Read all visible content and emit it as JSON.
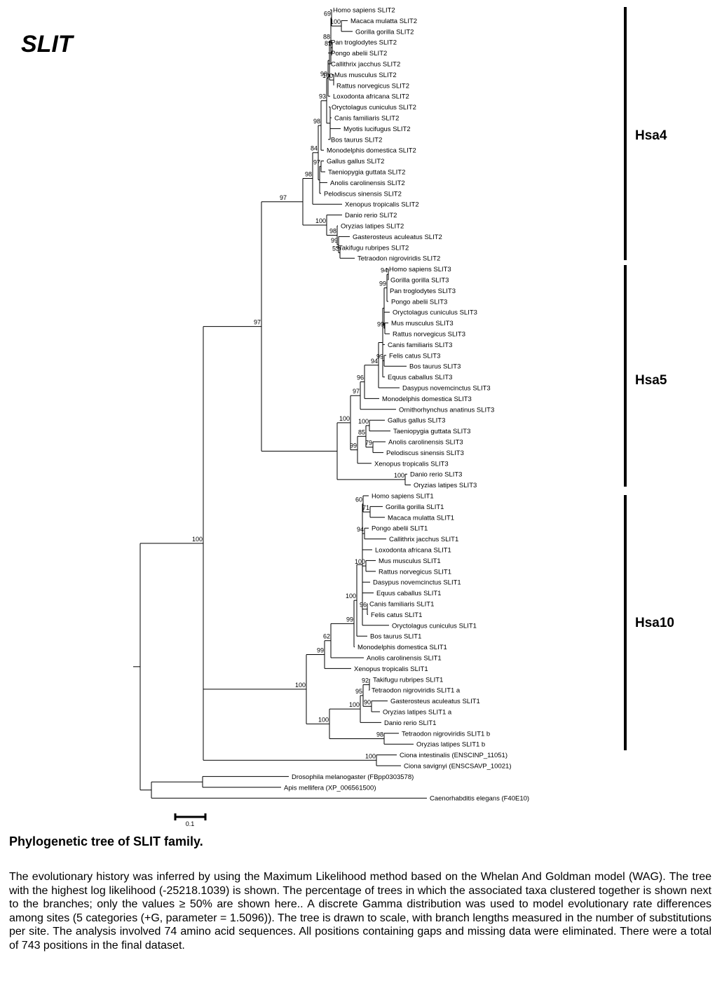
{
  "title": "SLIT",
  "tree": {
    "leaves": [
      "Homo sapiens SLIT2",
      "Macaca mulatta SLIT2",
      "Gorilla gorilla SLIT2",
      "Pan troglodytes SLIT2",
      "Pongo abelii SLIT2",
      "Callithrix jacchus SLIT2",
      "Mus musculus SLIT2",
      "Rattus norvegicus SLIT2",
      "Loxodonta africana SLIT2",
      "Oryctolagus cuniculus SLIT2",
      "Canis familiaris SLIT2",
      "Myotis lucifugus SLIT2",
      "Bos taurus SLIT2",
      "Monodelphis domestica SLIT2",
      "Gallus gallus SLIT2",
      "Taeniopygia guttata SLIT2",
      "Anolis carolinensis SLIT2",
      "Pelodiscus sinensis SLIT2",
      "Xenopus tropicalis SLIT2",
      "Danio rerio SLIT2",
      "Oryzias latipes SLIT2",
      "Gasterosteus aculeatus SLIT2",
      "Takifugu rubripes SLIT2",
      "Tetraodon nigroviridis SLIT2",
      "Homo sapiens SLIT3",
      "Gorilla gorilla SLIT3",
      "Pan troglodytes SLIT3",
      "Pongo abelii SLIT3",
      "Oryctolagus cuniculus SLIT3",
      "Mus musculus SLIT3",
      "Rattus norvegicus SLIT3",
      "Canis familiaris SLIT3",
      "Felis catus SLIT3",
      "Bos taurus SLIT3",
      "Equus caballus SLIT3",
      "Dasypus novemcinctus SLIT3",
      "Monodelphis domestica SLIT3",
      "Ornithorhynchus anatinus SLIT3",
      "Gallus gallus SLIT3",
      "Taeniopygia guttata SLIT3",
      "Anolis carolinensis SLIT3",
      "Pelodiscus sinensis SLIT3",
      "Xenopus tropicalis SLIT3",
      "Danio rerio SLIT3",
      "Oryzias latipes SLIT3",
      "Homo sapiens SLIT1",
      "Gorilla gorilla SLIT1",
      "Macaca mulatta SLIT1",
      "Pongo abelii SLIT1",
      "Callithrix jacchus SLIT1",
      "Loxodonta africana SLIT1",
      "Mus musculus SLIT1",
      "Rattus norvegicus SLIT1",
      "Dasypus novemcinctus SLIT1",
      "Equus caballus SLIT1",
      "Canis familiaris SLIT1",
      "Felis catus SLIT1",
      "Oryctolagus cuniculus SLIT1",
      "Bos taurus SLIT1",
      "Monodelphis domestica SLIT1",
      "Anolis carolinensis SLIT1",
      "Xenopus tropicalis SLIT1",
      "Takifugu rubripes SLIT1",
      "Tetraodon nigroviridis SLIT1 a",
      "Gasterosteus aculeatus SLIT1",
      "Oryzias latipes SLIT1 a",
      "Danio rerio SLIT1",
      "Tetraodon nigroviridis SLIT1 b",
      "Oryzias latipes SLIT1 b",
      "Ciona intestinalis (ENSCINP_11051)",
      "Ciona savignyi (ENSCSAVP_10021)",
      "Drosophila melanogaster (FBpp0303578)",
      "Apis mellifera (XP_006561500)",
      "Caenorhabditis elegans (F40E10)"
    ],
    "bootstrap": [
      "69",
      "88",
      "100",
      "81",
      "100",
      "98",
      "93",
      "98",
      "97",
      "84",
      "98",
      "100",
      "99",
      "53",
      "98",
      "94",
      "99",
      "99",
      "99",
      "94",
      "96",
      "97",
      "100",
      "99",
      "79",
      "85",
      "100",
      "100",
      "97",
      "60",
      "71",
      "94",
      "100",
      "96",
      "100",
      "99",
      "62",
      "99",
      "92",
      "100",
      "95",
      "90",
      "98",
      "100",
      "100",
      "100",
      "100",
      "97"
    ],
    "clades": [
      "Hsa4",
      "Hsa5",
      "Hsa10"
    ],
    "scale_bar": "0.1"
  },
  "caption": {
    "title": "Phylogenetic tree of SLIT family.",
    "body": "The evolutionary history was inferred by using the Maximum Likelihood method based on the Whelan And Goldman model (WAG). The tree with the highest log likelihood (-25218.1039) is shown. The percentage of trees in which the associated taxa clustered together is shown next to the branches; only the values ≥ 50% are shown here.. A discrete Gamma distribution was used to model evolutionary rate differences among sites (5 categories (+G, parameter = 1.5096)). The tree is drawn to scale, with branch lengths measured in the number of substitutions per site. The analysis involved 74 amino acid sequences. All positions containing gaps and missing data were eliminated. There were a total of 743 positions in the final dataset."
  }
}
